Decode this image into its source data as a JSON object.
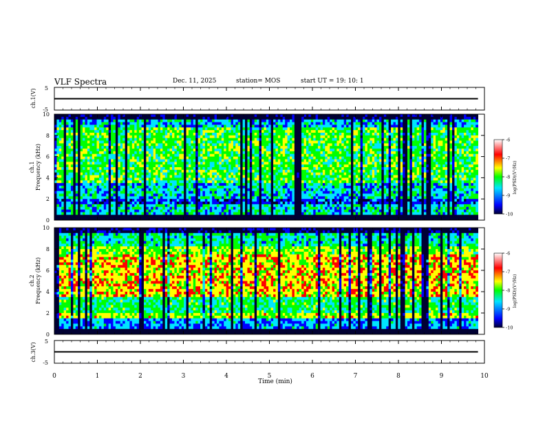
{
  "header": {
    "title": "VLF Spectra",
    "date": "Dec. 11, 2025",
    "station": "station= MOS",
    "start": "start  UT =   19: 10: 1"
  },
  "chart_data": [
    {
      "type": "line",
      "name": "ch.1 waveform",
      "ylabel": "ch.1(V)",
      "ylim": [
        -5,
        5
      ],
      "yticks": [
        "5",
        "-5"
      ],
      "value": 0,
      "xlim": [
        0,
        10
      ]
    },
    {
      "type": "heatmap",
      "name": "ch.1 spectrogram",
      "ylabel": "ch.1\nFrequency (kHz)",
      "ylim": [
        0,
        10
      ],
      "yticks": [
        "0",
        "2",
        "4",
        "6",
        "8",
        "10"
      ],
      "xlim": [
        0,
        10
      ],
      "data_end_min": 9.85,
      "colorbar": {
        "label": "log(PSD)(V²/Hz)",
        "range": [
          -10,
          -6
        ],
        "ticks": [
          "-6",
          "-7",
          "-8",
          "-9",
          "-10"
        ]
      },
      "description_levels": {
        "low_band_kHz": [
          0,
          0.5
        ],
        "upper_cutoff_kHz": 9.5
      }
    },
    {
      "type": "heatmap",
      "name": "ch.2 spectrogram",
      "ylabel": "ch.2\nFrequency (kHz)",
      "ylim": [
        0,
        10
      ],
      "yticks": [
        "0",
        "2",
        "4",
        "6",
        "8",
        "10"
      ],
      "xlim": [
        0,
        10
      ],
      "data_end_min": 9.85,
      "colorbar": {
        "label": "log(PSD)(V²/Hz)",
        "range": [
          -10,
          -6
        ],
        "ticks": [
          "-6",
          "-7",
          "-8",
          "-9",
          "-10"
        ]
      }
    },
    {
      "type": "line",
      "name": "ch.3 waveform",
      "ylabel": "ch.3(V)",
      "ylim": [
        -5,
        5
      ],
      "yticks": [
        "5",
        "-5"
      ],
      "value": 0,
      "xlim": [
        0,
        10
      ]
    }
  ],
  "xaxis": {
    "label": "Time  (min)",
    "ticks": [
      "0",
      "1",
      "2",
      "3",
      "4",
      "5",
      "6",
      "7",
      "8",
      "9",
      "10"
    ],
    "range": [
      0,
      10
    ]
  },
  "colors": {
    "cmap": [
      "#000033",
      "#0000ff",
      "#00e5ff",
      "#00ff00",
      "#ffff00",
      "#ff0000",
      "#ffffff"
    ]
  }
}
